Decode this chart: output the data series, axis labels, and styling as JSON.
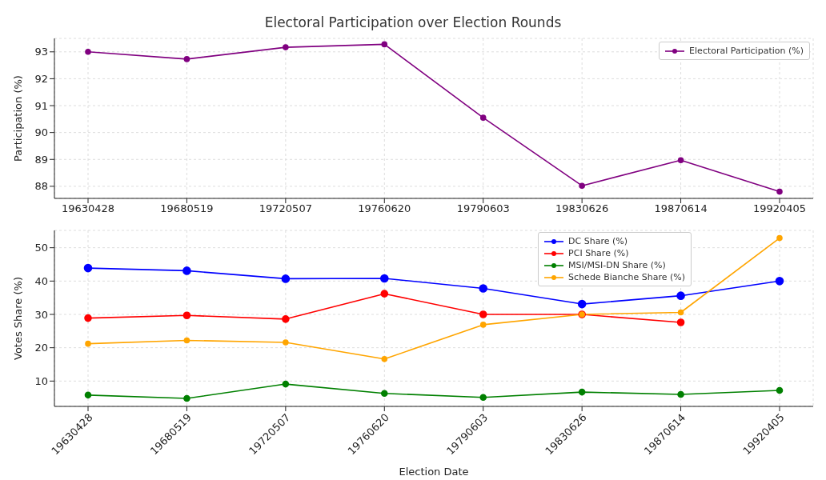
{
  "chart_data": [
    {
      "type": "line",
      "title": "Electoral Participation over Election Rounds",
      "ylabel": "Participation (%)",
      "categories": [
        "19630428",
        "19680519",
        "19720507",
        "19760620",
        "19790603",
        "19830626",
        "19870614",
        "19920405"
      ],
      "series": [
        {
          "name": "Electoral Participation (%)",
          "color": "#800080",
          "values": [
            93.0,
            92.73,
            93.17,
            93.28,
            90.55,
            88.02,
            88.97,
            87.8
          ]
        }
      ],
      "ylim": [
        87.55,
        93.5
      ],
      "yticks": [
        88,
        89,
        90,
        91,
        92,
        93
      ],
      "grid": true,
      "legend": "top right",
      "marker": "circle",
      "line_style": "solid"
    },
    {
      "type": "line",
      "xlabel": "Election Date",
      "ylabel": "Votes Share (%)",
      "categories": [
        "19630428",
        "19680519",
        "19720507",
        "19760620",
        "19790603",
        "19830626",
        "19870614",
        "19920405"
      ],
      "series": [
        {
          "name": "DC Share (%)",
          "color": "#0000ff",
          "values": [
            43.9,
            43.1,
            40.7,
            40.8,
            37.8,
            33.1,
            35.6,
            40.0
          ]
        },
        {
          "name": "PCI Share (%)",
          "color": "#ff0000",
          "values": [
            28.9,
            29.7,
            28.6,
            36.2,
            30.0,
            30.0,
            27.6,
            null
          ]
        },
        {
          "name": "MSI/MSI-DN Share (%)",
          "color": "#008000",
          "values": [
            5.8,
            4.8,
            9.1,
            6.3,
            5.1,
            6.7,
            6.0,
            7.2
          ]
        },
        {
          "name": "Schede Bianche Share (%)",
          "color": "#ffa500",
          "values": [
            21.2,
            22.2,
            21.6,
            16.6,
            26.9,
            30.0,
            30.6,
            52.9
          ]
        }
      ],
      "ylim": [
        2.4,
        55.2
      ],
      "yticks": [
        10,
        20,
        30,
        40,
        50
      ],
      "grid": true,
      "legend": "top right",
      "marker": "circle",
      "line_style": "solid"
    }
  ]
}
